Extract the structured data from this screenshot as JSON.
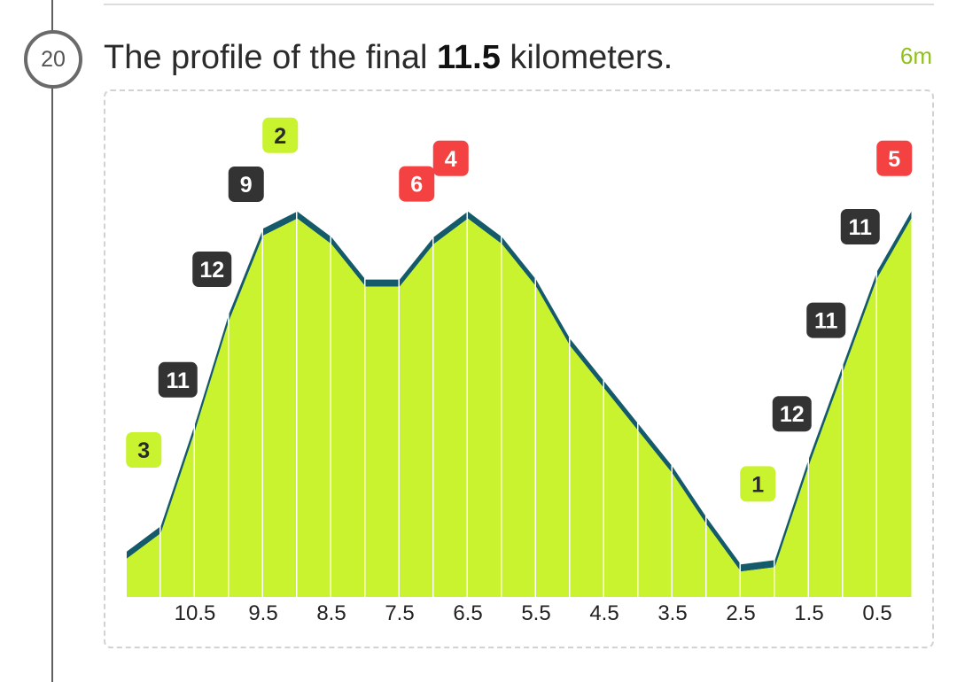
{
  "step": {
    "number": "20"
  },
  "heading": {
    "prefix": "The profile of the final ",
    "distance": "11.5",
    "suffix": " kilometers."
  },
  "duration": "6m",
  "colors": {
    "fill": "#c9f22f",
    "ridge": "#145a6a",
    "grade_dark": "#333333",
    "grade_green": "#c9f22f",
    "grade_red": "#f44141"
  },
  "chart_data": {
    "type": "area",
    "title": "",
    "xlabel": "",
    "ylabel": "",
    "x_direction": "descending",
    "xlim": [
      11.5,
      0
    ],
    "x_ticks": [
      "10.5",
      "9.5",
      "8.5",
      "7.5",
      "6.5",
      "5.5",
      "4.5",
      "3.5",
      "2.5",
      "1.5",
      "0.5"
    ],
    "segments": [
      {
        "x_start": 11.5,
        "x_end": 11.0,
        "y_start": 4.5,
        "y_end": 7.5,
        "grade": "3",
        "grade_color": "green"
      },
      {
        "x_start": 11.0,
        "x_end": 10.5,
        "y_start": 7.5,
        "y_end": 19.5,
        "grade": "11",
        "grade_color": "dark"
      },
      {
        "x_start": 10.5,
        "x_end": 10.0,
        "y_start": 19.5,
        "y_end": 32.5,
        "grade": "12",
        "grade_color": "dark"
      },
      {
        "x_start": 10.0,
        "x_end": 9.5,
        "y_start": 32.5,
        "y_end": 42.5,
        "grade": "9",
        "grade_color": "dark"
      },
      {
        "x_start": 9.5,
        "x_end": 9.0,
        "y_start": 42.5,
        "y_end": 44.5,
        "grade": "2",
        "grade_color": "green"
      },
      {
        "x_start": 9.0,
        "x_end": 8.5,
        "y_start": 44.5,
        "y_end": 41.5,
        "grade": "",
        "grade_color": ""
      },
      {
        "x_start": 8.5,
        "x_end": 8.0,
        "y_start": 41.5,
        "y_end": 36.5,
        "grade": "",
        "grade_color": ""
      },
      {
        "x_start": 8.0,
        "x_end": 7.5,
        "y_start": 36.5,
        "y_end": 36.5,
        "grade": "",
        "grade_color": ""
      },
      {
        "x_start": 7.5,
        "x_end": 7.0,
        "y_start": 36.5,
        "y_end": 41.5,
        "grade": "6",
        "grade_color": "red"
      },
      {
        "x_start": 7.0,
        "x_end": 6.5,
        "y_start": 41.5,
        "y_end": 44.5,
        "grade": "4",
        "grade_color": "red"
      },
      {
        "x_start": 6.5,
        "x_end": 6.0,
        "y_start": 44.5,
        "y_end": 41.5,
        "grade": "",
        "grade_color": ""
      },
      {
        "x_start": 6.0,
        "x_end": 5.5,
        "y_start": 41.5,
        "y_end": 36.5,
        "grade": "",
        "grade_color": ""
      },
      {
        "x_start": 5.5,
        "x_end": 5.0,
        "y_start": 36.5,
        "y_end": 29.5,
        "grade": "",
        "grade_color": ""
      },
      {
        "x_start": 5.0,
        "x_end": 4.5,
        "y_start": 29.5,
        "y_end": 24.5,
        "grade": "",
        "grade_color": ""
      },
      {
        "x_start": 4.5,
        "x_end": 4.0,
        "y_start": 24.5,
        "y_end": 19.5,
        "grade": "",
        "grade_color": ""
      },
      {
        "x_start": 4.0,
        "x_end": 3.5,
        "y_start": 19.5,
        "y_end": 14.5,
        "grade": "",
        "grade_color": ""
      },
      {
        "x_start": 3.5,
        "x_end": 3.0,
        "y_start": 14.5,
        "y_end": 8.5,
        "grade": "",
        "grade_color": ""
      },
      {
        "x_start": 3.0,
        "x_end": 2.5,
        "y_start": 8.5,
        "y_end": 3.0,
        "grade": "",
        "grade_color": ""
      },
      {
        "x_start": 2.5,
        "x_end": 2.0,
        "y_start": 3.0,
        "y_end": 3.5,
        "grade": "1",
        "grade_color": "green"
      },
      {
        "x_start": 2.0,
        "x_end": 1.5,
        "y_start": 3.5,
        "y_end": 15.5,
        "grade": "12",
        "grade_color": "dark"
      },
      {
        "x_start": 1.5,
        "x_end": 1.0,
        "y_start": 15.5,
        "y_end": 26.5,
        "grade": "11",
        "grade_color": "dark"
      },
      {
        "x_start": 1.0,
        "x_end": 0.5,
        "y_start": 26.5,
        "y_end": 37.5,
        "grade": "11",
        "grade_color": "dark"
      },
      {
        "x_start": 0.5,
        "x_end": 0.0,
        "y_start": 37.5,
        "y_end": 44.5,
        "grade": "5",
        "grade_color": "red"
      }
    ],
    "grid": false,
    "legend": "none"
  }
}
